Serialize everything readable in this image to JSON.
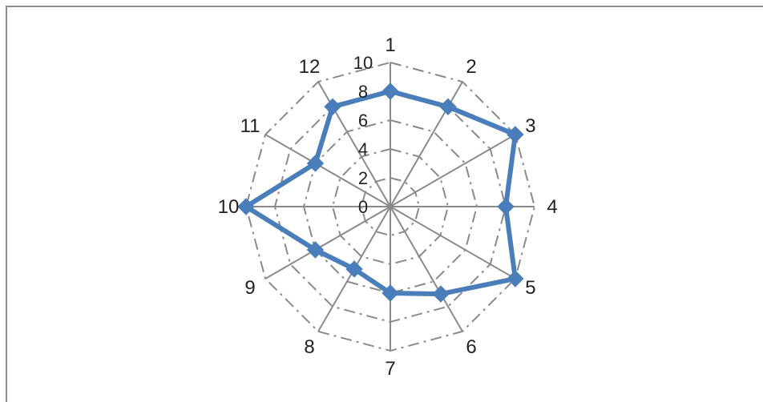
{
  "chart_data": {
    "type": "radar",
    "categories": [
      "1",
      "2",
      "3",
      "4",
      "5",
      "6",
      "7",
      "8",
      "9",
      "10",
      "11",
      "12"
    ],
    "series": [
      {
        "values": [
          8,
          8,
          10,
          8,
          10,
          7,
          6,
          5,
          6,
          10,
          6,
          8
        ]
      }
    ],
    "rlim": [
      0,
      10
    ],
    "ticks": [
      "0",
      "2",
      "4",
      "6",
      "8",
      "10"
    ],
    "grid": true,
    "colors": {
      "series": "#4a7ebb",
      "grid": "#8a8a8a",
      "frame": "#8c8c8c",
      "text": "#222222"
    }
  }
}
